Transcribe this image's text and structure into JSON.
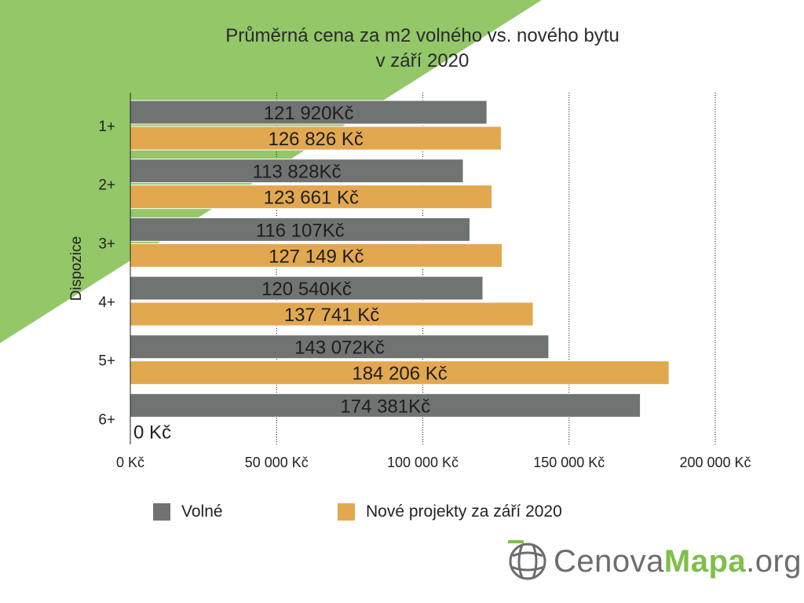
{
  "chart_data": {
    "type": "bar",
    "orientation": "horizontal",
    "title": "Průměrná cena za m2 volného vs. nového bytu",
    "subtitle": "v září 2020",
    "ylabel": "Dispozice",
    "xlabel": "",
    "categories": [
      "1+",
      "2+",
      "3+",
      "4+",
      "5+",
      "6+"
    ],
    "xlim": [
      0,
      200000
    ],
    "x_ticks": [
      0,
      50000,
      100000,
      150000,
      200000
    ],
    "x_tick_labels": [
      "0 Kč",
      "50 000 Kč",
      "100 000 Kč",
      "150 000 Kč",
      "200 000 Kč"
    ],
    "grid": "vertical-dotted",
    "legend_position": "bottom",
    "series": [
      {
        "name": "Volné",
        "color": "#6f7472",
        "values": [
          121920,
          113828,
          116107,
          120540,
          143072,
          174381
        ],
        "labels": [
          "121 920Kč",
          "113 828Kč",
          "116 107Kč",
          "120 540Kč",
          "143 072Kč",
          "174 381Kč"
        ]
      },
      {
        "name": "Nové projekty za září 2020",
        "color": "#e2a850",
        "values": [
          126826,
          123661,
          127149,
          137741,
          184206,
          0
        ],
        "labels": [
          "126 826 Kč",
          "123 661 Kč",
          "127 149 Kč",
          "137 741 Kč",
          "184 206 Kč",
          "0 Kč"
        ]
      }
    ]
  },
  "background_color": "#93c768",
  "logo": {
    "text_part1": "Cenova",
    "text_part2": "Mapa",
    "text_part3": ".org",
    "icon": "globe-grid-icon"
  }
}
